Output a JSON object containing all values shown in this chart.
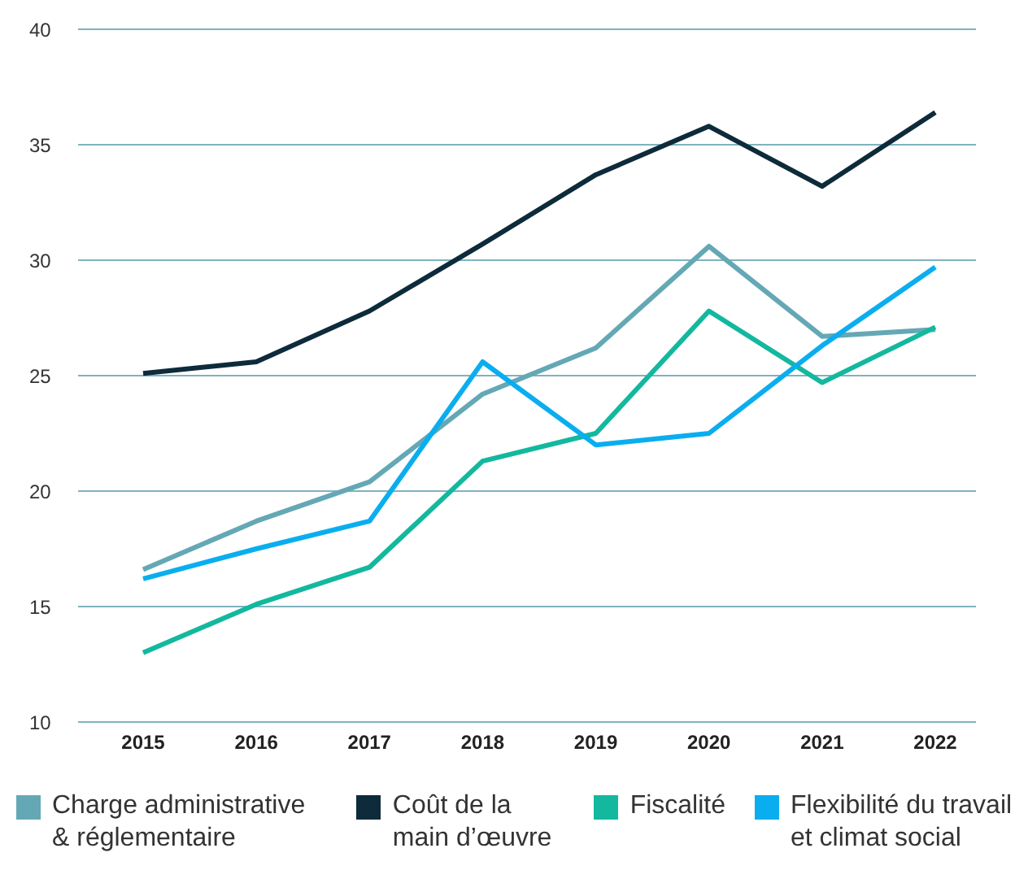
{
  "chart_data": {
    "type": "line",
    "categories": [
      "2015",
      "2016",
      "2017",
      "2018",
      "2019",
      "2020",
      "2021",
      "2022"
    ],
    "series": [
      {
        "name": "Charge administrative & réglementaire",
        "color": "#64a8b5",
        "values": [
          16.6,
          18.7,
          20.4,
          24.2,
          26.2,
          30.6,
          26.7,
          27.0
        ]
      },
      {
        "name": "Coût de la main d’œuvre",
        "color": "#0d2b3a",
        "values": [
          25.1,
          25.6,
          27.8,
          30.7,
          33.7,
          35.8,
          33.2,
          36.4
        ]
      },
      {
        "name": "Fiscalité",
        "color": "#13b89e",
        "values": [
          13.0,
          15.1,
          16.7,
          21.3,
          22.5,
          27.8,
          24.7,
          27.1
        ]
      },
      {
        "name": "Flexibilité du travail et climat social",
        "color": "#0aaeef",
        "values": [
          16.2,
          17.5,
          18.7,
          25.6,
          22.0,
          22.5,
          26.3,
          29.7
        ]
      }
    ],
    "ylim": [
      10,
      40
    ],
    "yticks": [
      10,
      15,
      20,
      25,
      30,
      35,
      40
    ],
    "grid": "y",
    "legend": "bottom",
    "marker": "none",
    "line_style": "solid"
  }
}
